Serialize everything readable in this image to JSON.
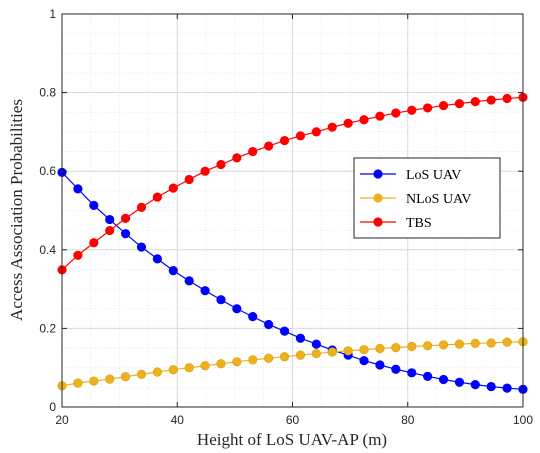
{
  "chart_data": {
    "type": "line",
    "title": "",
    "xlabel": "Height of LoS UAV-AP (m)",
    "ylabel": "Access Association Probabilities",
    "xlim": [
      20,
      100
    ],
    "ylim": [
      0,
      1
    ],
    "xticks": [
      20,
      40,
      60,
      80,
      100
    ],
    "yticks": [
      0,
      0.2,
      0.4,
      0.6,
      0.8,
      1
    ],
    "ytick_labels": [
      "0",
      "0.2",
      "0.4",
      "0.6",
      "0.8",
      "1"
    ],
    "grid": "major and minor (dotted)",
    "legend_position": "right",
    "x": [
      20,
      22.76,
      25.52,
      28.28,
      31.03,
      33.79,
      36.55,
      39.31,
      42.07,
      44.83,
      47.59,
      50.34,
      53.1,
      55.86,
      58.62,
      61.38,
      64.14,
      66.9,
      69.66,
      72.41,
      75.17,
      77.93,
      80.69,
      83.45,
      86.21,
      88.97,
      91.72,
      94.48,
      97.24,
      100
    ],
    "series": [
      {
        "name": "LoS UAV",
        "color": "#0000ff",
        "values": [
          0.597,
          0.555,
          0.513,
          0.477,
          0.441,
          0.407,
          0.377,
          0.347,
          0.321,
          0.296,
          0.273,
          0.25,
          0.23,
          0.21,
          0.193,
          0.175,
          0.16,
          0.145,
          0.132,
          0.118,
          0.107,
          0.096,
          0.087,
          0.078,
          0.07,
          0.063,
          0.057,
          0.052,
          0.048,
          0.045
        ]
      },
      {
        "name": "NLoS UAV",
        "color": "#edb120",
        "values": [
          0.054,
          0.061,
          0.066,
          0.071,
          0.077,
          0.083,
          0.089,
          0.095,
          0.1,
          0.105,
          0.11,
          0.115,
          0.12,
          0.124,
          0.128,
          0.132,
          0.136,
          0.14,
          0.143,
          0.146,
          0.149,
          0.151,
          0.154,
          0.156,
          0.158,
          0.16,
          0.162,
          0.163,
          0.165,
          0.166
        ]
      },
      {
        "name": "TBS",
        "color": "#ff0000",
        "values": [
          0.349,
          0.386,
          0.418,
          0.449,
          0.48,
          0.508,
          0.534,
          0.557,
          0.579,
          0.6,
          0.617,
          0.634,
          0.65,
          0.664,
          0.678,
          0.69,
          0.7,
          0.712,
          0.722,
          0.731,
          0.74,
          0.748,
          0.755,
          0.761,
          0.767,
          0.772,
          0.777,
          0.781,
          0.785,
          0.788
        ]
      }
    ]
  },
  "colors": {
    "background": "#ffffff",
    "axis": "#262626",
    "grid": "#d9d9d9",
    "line_edge": "#444444"
  }
}
